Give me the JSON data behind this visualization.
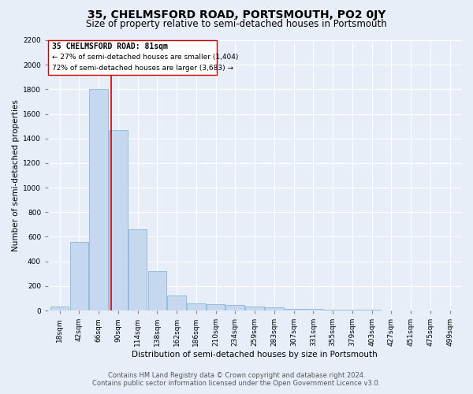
{
  "title": "35, CHELMSFORD ROAD, PORTSMOUTH, PO2 0JY",
  "subtitle": "Size of property relative to semi-detached houses in Portsmouth",
  "xlabel": "Distribution of semi-detached houses by size in Portsmouth",
  "ylabel": "Number of semi-detached properties",
  "footer_line1": "Contains HM Land Registry data © Crown copyright and database right 2024.",
  "footer_line2": "Contains public sector information licensed under the Open Government Licence v3.0.",
  "annotation_line1": "35 CHELMSFORD ROAD: 81sqm",
  "annotation_line2": "← 27% of semi-detached houses are smaller (1,404)",
  "annotation_line3": "72% of semi-detached houses are larger (3,683) →",
  "red_line_x": 81,
  "ylim": [
    0,
    2200
  ],
  "bin_edges": [
    6,
    30,
    54,
    78,
    102,
    126,
    150,
    174,
    198,
    222,
    246,
    270,
    294,
    318,
    342,
    366,
    390,
    414,
    438,
    462,
    486,
    510
  ],
  "bin_labels": [
    "18sqm",
    "42sqm",
    "66sqm",
    "90sqm",
    "114sqm",
    "138sqm",
    "162sqm",
    "186sqm",
    "210sqm",
    "234sqm",
    "259sqm",
    "283sqm",
    "307sqm",
    "331sqm",
    "355sqm",
    "379sqm",
    "403sqm",
    "427sqm",
    "451sqm",
    "475sqm",
    "499sqm"
  ],
  "bar_heights": [
    30,
    560,
    1800,
    1470,
    660,
    320,
    125,
    60,
    50,
    45,
    30,
    25,
    15,
    10,
    8,
    5,
    4,
    3,
    2,
    1,
    1
  ],
  "bar_color": "#c5d8ef",
  "bar_edge_color": "#7aadd4",
  "background_color": "#e8eef8",
  "grid_color": "#ffffff",
  "red_line_color": "#cc0000",
  "annotation_box_color": "#cc0000",
  "title_fontsize": 10,
  "subtitle_fontsize": 8.5,
  "axis_label_fontsize": 7.5,
  "tick_fontsize": 6.5,
  "annotation_fontsize": 7,
  "footer_fontsize": 6
}
